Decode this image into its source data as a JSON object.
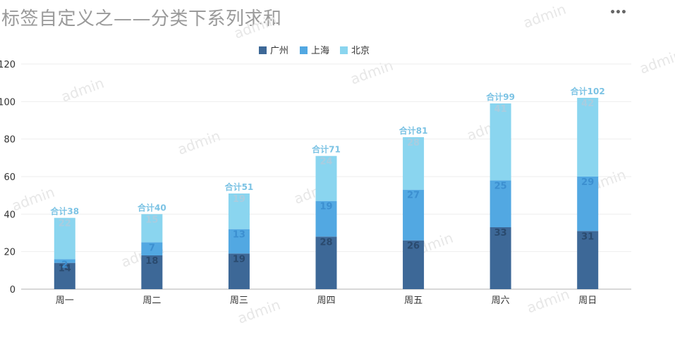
{
  "header": {
    "title": "标签自定义之——分类下系列求和",
    "menu_icon": "more-horizontal-icon"
  },
  "watermark_text": "admin",
  "total_prefix": "合计",
  "chart_data": {
    "type": "bar",
    "stacked": true,
    "title": "标签自定义之——分类下系列求和",
    "categories": [
      "周一",
      "周二",
      "周三",
      "周四",
      "周五",
      "周六",
      "周日"
    ],
    "series": [
      {
        "name": "广州",
        "color": "#3d6897",
        "label_color": "#2a4a6e",
        "values": [
          14,
          18,
          19,
          28,
          26,
          33,
          31
        ]
      },
      {
        "name": "上海",
        "color": "#52a8e2",
        "label_color": "#3c8fd0",
        "values": [
          2,
          7,
          13,
          19,
          27,
          25,
          29
        ]
      },
      {
        "name": "北京",
        "color": "#8ad5ef",
        "label_color": "#a9cde0",
        "values": [
          22,
          15,
          19,
          24,
          28,
          41,
          42
        ]
      }
    ],
    "totals": [
      "合计38",
      "合计40",
      "合计51",
      "合计71",
      "合计81",
      "合计99",
      "合计102"
    ],
    "total_label_color": "#7cc3e4",
    "ylim": [
      0,
      120
    ],
    "yticks": [
      0,
      20,
      40,
      60,
      80,
      100,
      120
    ],
    "grid": true,
    "legend_position": "top-center"
  }
}
